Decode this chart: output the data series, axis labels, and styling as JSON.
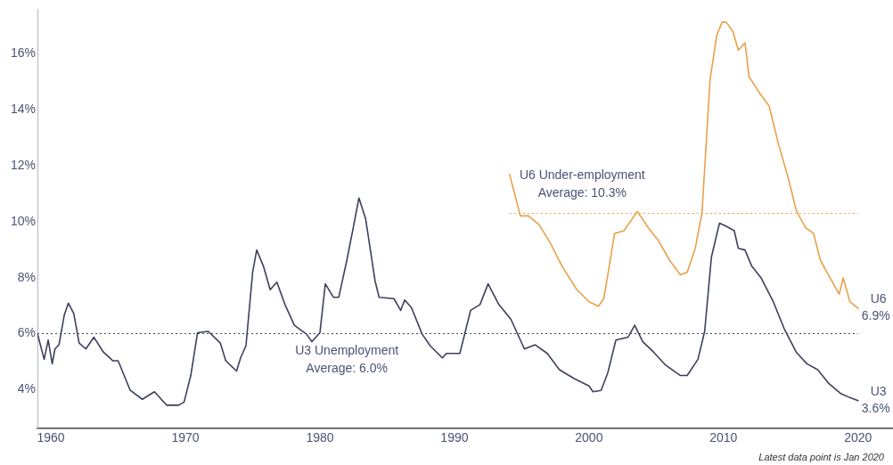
{
  "chart_data": {
    "type": "line",
    "xlim": [
      1959,
      2022.6
    ],
    "xticks": [
      1960,
      1970,
      1980,
      1990,
      2000,
      2010,
      2020
    ],
    "ylim": [
      2.6,
      17.6
    ],
    "yticks": [
      {
        "value": 4,
        "label": "4%"
      },
      {
        "value": 6,
        "label": "6%"
      },
      {
        "value": 8,
        "label": "8%"
      },
      {
        "value": 10,
        "label": "10%"
      },
      {
        "value": 12,
        "label": "12%"
      },
      {
        "value": 14,
        "label": "14%"
      },
      {
        "value": 16,
        "label": "16%"
      }
    ],
    "grid": false,
    "legend": false,
    "marker": "none",
    "line_style": "solid",
    "series": [
      {
        "name": "U3",
        "color": "#3b405e",
        "x": [
          1959.0,
          1959.3,
          1959.5,
          1959.8,
          1960.1,
          1960.3,
          1960.6,
          1961.0,
          1961.3,
          1961.7,
          1962.1,
          1962.6,
          1963.2,
          1963.9,
          1964.6,
          1965.0,
          1965.9,
          1966.8,
          1967.7,
          1968.6,
          1969.5,
          1969.9,
          1970.4,
          1970.9,
          1971.7,
          1972.6,
          1973.0,
          1973.8,
          1974.1,
          1974.5,
          1975.0,
          1975.3,
          1975.8,
          1976.3,
          1976.8,
          1977.4,
          1978.1,
          1979.0,
          1979.4,
          1980.0,
          1980.4,
          1981.0,
          1981.4,
          1982.0,
          1982.5,
          1982.9,
          1983.4,
          1984.1,
          1984.4,
          1985.5,
          1986.0,
          1986.3,
          1986.8,
          1987.6,
          1988.2,
          1989.1,
          1989.4,
          1990.4,
          1991.2,
          1991.9,
          1992.5,
          1993.3,
          1994.2,
          1995.2,
          1996.0,
          1996.9,
          1997.8,
          1998.9,
          2000.0,
          2000.3,
          2000.9,
          2001.4,
          2002.0,
          2002.9,
          2003.4,
          2004.0,
          2004.8,
          2005.7,
          2006.8,
          2007.3,
          2008.1,
          2008.6,
          2009.1,
          2009.7,
          2010.2,
          2010.8,
          2011.1,
          2011.6,
          2012.1,
          2012.8,
          2013.7,
          2014.5,
          2015.4,
          2016.2,
          2017.0,
          2017.8,
          2018.7,
          2019.4,
          2020.0
        ],
        "values": [
          6.0,
          5.45,
          5.08,
          5.77,
          4.92,
          5.45,
          5.6,
          6.67,
          7.09,
          6.72,
          5.66,
          5.45,
          5.87,
          5.34,
          5.03,
          5.03,
          3.97,
          3.65,
          3.92,
          3.44,
          3.44,
          3.55,
          4.5,
          6.03,
          6.08,
          5.66,
          5.03,
          4.66,
          5.13,
          5.56,
          8.2,
          8.99,
          8.41,
          7.57,
          7.84,
          7.04,
          6.3,
          5.98,
          5.71,
          6.03,
          7.78,
          7.3,
          7.3,
          8.62,
          9.84,
          10.85,
          10.1,
          7.88,
          7.3,
          7.25,
          6.83,
          7.2,
          6.93,
          5.98,
          5.56,
          5.13,
          5.29,
          5.29,
          6.83,
          7.04,
          7.78,
          7.04,
          6.51,
          5.45,
          5.6,
          5.29,
          4.71,
          4.39,
          4.13,
          3.92,
          3.97,
          4.6,
          5.77,
          5.87,
          6.3,
          5.71,
          5.34,
          4.87,
          4.5,
          4.5,
          5.08,
          6.08,
          8.73,
          9.95,
          9.84,
          9.68,
          9.05,
          8.99,
          8.41,
          7.99,
          7.14,
          6.19,
          5.34,
          4.92,
          4.71,
          4.23,
          3.86,
          3.71,
          3.6
        ],
        "value_labels": [
          null,
          null,
          null,
          null,
          null,
          null,
          null,
          null,
          null,
          null,
          null,
          null,
          null,
          null,
          null,
          null,
          null,
          null,
          null,
          null,
          null,
          null,
          null,
          null,
          null,
          null,
          null,
          null,
          null,
          null,
          null,
          null,
          null,
          null,
          null,
          null,
          null,
          null,
          null,
          null,
          null,
          null,
          null,
          null,
          null,
          null,
          null,
          null,
          null,
          null,
          null,
          null,
          null,
          null,
          null,
          null,
          null,
          null,
          null,
          null,
          null,
          null,
          null,
          null,
          null,
          null,
          null,
          null,
          null,
          null,
          null,
          null,
          null,
          null,
          null,
          null,
          null,
          null,
          null,
          null,
          null,
          null,
          null,
          null,
          null,
          null,
          null,
          null,
          null,
          null,
          null,
          null,
          null,
          null,
          null,
          null,
          null,
          null,
          "3.6%"
        ]
      },
      {
        "name": "U6",
        "color": "#e9a049",
        "x": [
          1994.1,
          1994.5,
          1994.9,
          1995.5,
          1996.3,
          1997.1,
          1998.0,
          1999.1,
          2000.0,
          2000.7,
          2001.1,
          2001.4,
          2001.9,
          2002.6,
          2003.6,
          2004.4,
          2005.1,
          2006.0,
          2006.8,
          2007.3,
          2007.9,
          2008.4,
          2009.0,
          2009.5,
          2009.9,
          2010.2,
          2010.7,
          2011.1,
          2011.6,
          2011.9,
          2012.6,
          2013.4,
          2014.1,
          2014.8,
          2015.4,
          2016.1,
          2016.7,
          2017.2,
          2017.8,
          2018.6,
          2018.9,
          2019.4,
          2020.0
        ],
        "values": [
          11.69,
          10.95,
          10.21,
          10.21,
          9.89,
          9.26,
          8.41,
          7.57,
          7.14,
          6.98,
          7.25,
          8.1,
          9.58,
          9.68,
          10.37,
          9.79,
          9.37,
          8.62,
          8.1,
          8.2,
          9.05,
          10.31,
          15.08,
          16.67,
          17.14,
          17.14,
          16.8,
          16.14,
          16.4,
          15.19,
          14.66,
          14.13,
          12.75,
          11.59,
          10.42,
          9.79,
          9.58,
          8.62,
          8.1,
          7.41,
          7.99,
          7.14,
          6.9
        ],
        "value_labels": [
          null,
          null,
          null,
          null,
          null,
          null,
          null,
          null,
          null,
          null,
          null,
          null,
          null,
          null,
          null,
          null,
          null,
          null,
          null,
          null,
          null,
          null,
          null,
          null,
          null,
          null,
          null,
          null,
          null,
          null,
          null,
          null,
          null,
          null,
          null,
          null,
          null,
          null,
          null,
          null,
          null,
          null,
          "6.9%"
        ]
      }
    ],
    "ref_lines": [
      {
        "axis": "y",
        "value": 6.0,
        "color": "#3b405e",
        "line_style": "dotted"
      },
      {
        "axis": "y",
        "value": 10.3,
        "color": "#e9a049",
        "line_style": "dotted"
      }
    ],
    "annotations": [
      {
        "text": "U3 Unemployment\nAverage: 6.0%",
        "x": 1982,
        "y": 6.0
      },
      {
        "text": "U6 Under-employment\nAverage: 10.3%",
        "x": 1999.5,
        "y": 10.3
      },
      "Latest data point is Jan 2020"
    ]
  }
}
